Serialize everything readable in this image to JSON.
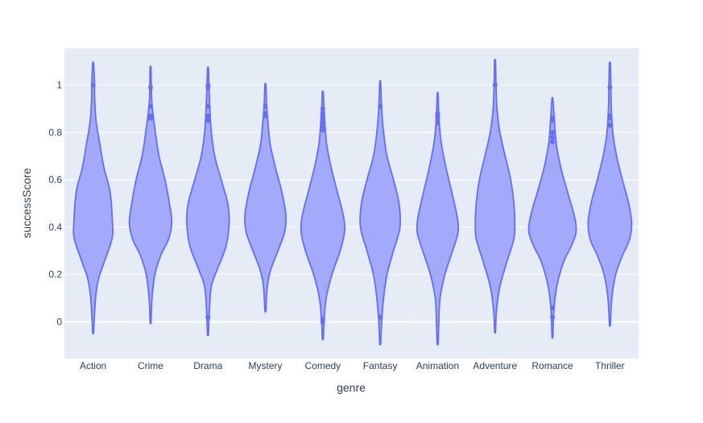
{
  "chart_data": {
    "type": "violin",
    "title": "",
    "xlabel": "genre",
    "ylabel": "successScore",
    "ylim": [
      -0.155,
      1.155
    ],
    "yticks": [
      0,
      0.2,
      0.4,
      0.6,
      0.8,
      1
    ],
    "ytick_labels": [
      "0",
      "0.2",
      "0.4",
      "0.6",
      "0.8",
      "1"
    ],
    "grid": true,
    "colors": {
      "plot_bg": "#e5ecf6",
      "grid": "#ffffff",
      "fill": "#a3a9fb",
      "line": "#636efa",
      "text": "#2a3f5f"
    },
    "categories": [
      "Action",
      "Crime",
      "Drama",
      "Mystery",
      "Comedy",
      "Fantasy",
      "Animation",
      "Adventure",
      "Romance",
      "Thriller"
    ],
    "violins": [
      {
        "category": "Action",
        "range": [
          -0.04,
          1.09
        ],
        "profile": [
          [
            -0.04,
            0.02
          ],
          [
            0.1,
            0.1
          ],
          [
            0.18,
            0.22
          ],
          [
            0.25,
            0.45
          ],
          [
            0.35,
            0.78
          ],
          [
            0.42,
            0.8
          ],
          [
            0.55,
            0.7
          ],
          [
            0.65,
            0.45
          ],
          [
            0.75,
            0.28
          ],
          [
            0.85,
            0.12
          ],
          [
            0.95,
            0.06
          ],
          [
            1.0,
            0.06
          ],
          [
            1.09,
            0.02
          ]
        ],
        "outliers": [
          1.0
        ]
      },
      {
        "category": "Crime",
        "range": [
          0.0,
          1.07
        ],
        "profile": [
          [
            0.0,
            0.02
          ],
          [
            0.1,
            0.06
          ],
          [
            0.2,
            0.18
          ],
          [
            0.28,
            0.42
          ],
          [
            0.35,
            0.75
          ],
          [
            0.42,
            0.88
          ],
          [
            0.5,
            0.78
          ],
          [
            0.6,
            0.6
          ],
          [
            0.7,
            0.35
          ],
          [
            0.8,
            0.2
          ],
          [
            0.88,
            0.1
          ],
          [
            0.95,
            0.04
          ],
          [
            1.07,
            0.02
          ]
        ],
        "outliers": [
          0.86,
          0.87,
          0.91,
          0.99
        ]
      },
      {
        "category": "Drama",
        "range": [
          -0.05,
          1.07
        ],
        "profile": [
          [
            -0.05,
            0.02
          ],
          [
            0.05,
            0.06
          ],
          [
            0.15,
            0.14
          ],
          [
            0.22,
            0.38
          ],
          [
            0.32,
            0.75
          ],
          [
            0.42,
            0.88
          ],
          [
            0.5,
            0.82
          ],
          [
            0.6,
            0.55
          ],
          [
            0.7,
            0.28
          ],
          [
            0.8,
            0.14
          ],
          [
            0.9,
            0.08
          ],
          [
            1.0,
            0.04
          ],
          [
            1.07,
            0.02
          ]
        ],
        "outliers": [
          0.02,
          0.85,
          0.86,
          0.87,
          0.91,
          0.99,
          1.0
        ]
      },
      {
        "category": "Mystery",
        "range": [
          0.05,
          1.0
        ],
        "profile": [
          [
            0.05,
            0.02
          ],
          [
            0.15,
            0.08
          ],
          [
            0.22,
            0.22
          ],
          [
            0.3,
            0.52
          ],
          [
            0.38,
            0.8
          ],
          [
            0.45,
            0.85
          ],
          [
            0.55,
            0.68
          ],
          [
            0.65,
            0.42
          ],
          [
            0.75,
            0.2
          ],
          [
            0.85,
            0.1
          ],
          [
            0.92,
            0.05
          ],
          [
            1.0,
            0.02
          ]
        ],
        "outliers": [
          0.87,
          0.88,
          0.91
        ]
      },
      {
        "category": "Comedy",
        "range": [
          -0.07,
          0.97
        ],
        "profile": [
          [
            -0.07,
            0.02
          ],
          [
            0.0,
            0.05
          ],
          [
            0.1,
            0.14
          ],
          [
            0.2,
            0.38
          ],
          [
            0.3,
            0.72
          ],
          [
            0.38,
            0.9
          ],
          [
            0.45,
            0.85
          ],
          [
            0.55,
            0.6
          ],
          [
            0.65,
            0.35
          ],
          [
            0.75,
            0.16
          ],
          [
            0.85,
            0.08
          ],
          [
            0.92,
            0.04
          ],
          [
            0.97,
            0.02
          ]
        ],
        "outliers": [
          0.0,
          0.01,
          0.81,
          0.82,
          0.84,
          0.85,
          0.86,
          0.88,
          0.9
        ]
      },
      {
        "category": "Fantasy",
        "range": [
          -0.09,
          1.01
        ],
        "profile": [
          [
            -0.09,
            0.02
          ],
          [
            0.0,
            0.06
          ],
          [
            0.1,
            0.14
          ],
          [
            0.2,
            0.28
          ],
          [
            0.3,
            0.55
          ],
          [
            0.4,
            0.82
          ],
          [
            0.5,
            0.78
          ],
          [
            0.6,
            0.55
          ],
          [
            0.7,
            0.28
          ],
          [
            0.8,
            0.14
          ],
          [
            0.9,
            0.06
          ],
          [
            1.01,
            0.02
          ]
        ],
        "outliers": [
          0.02,
          0.91
        ]
      },
      {
        "category": "Animation",
        "range": [
          -0.09,
          0.96
        ],
        "profile": [
          [
            -0.09,
            0.02
          ],
          [
            0.0,
            0.05
          ],
          [
            0.1,
            0.1
          ],
          [
            0.2,
            0.3
          ],
          [
            0.3,
            0.62
          ],
          [
            0.38,
            0.85
          ],
          [
            0.45,
            0.8
          ],
          [
            0.55,
            0.58
          ],
          [
            0.65,
            0.35
          ],
          [
            0.75,
            0.16
          ],
          [
            0.85,
            0.06
          ],
          [
            0.96,
            0.02
          ]
        ],
        "outliers": [
          0.84,
          0.86,
          0.87,
          0.88
        ]
      },
      {
        "category": "Adventure",
        "range": [
          -0.04,
          1.1
        ],
        "profile": [
          [
            -0.04,
            0.02
          ],
          [
            0.05,
            0.06
          ],
          [
            0.15,
            0.2
          ],
          [
            0.25,
            0.48
          ],
          [
            0.35,
            0.78
          ],
          [
            0.42,
            0.82
          ],
          [
            0.5,
            0.78
          ],
          [
            0.6,
            0.65
          ],
          [
            0.7,
            0.42
          ],
          [
            0.8,
            0.2
          ],
          [
            0.9,
            0.08
          ],
          [
            1.0,
            0.04
          ],
          [
            1.1,
            0.02
          ]
        ],
        "outliers": [
          1.0
        ]
      },
      {
        "category": "Romance",
        "range": [
          -0.06,
          0.94
        ],
        "profile": [
          [
            -0.06,
            0.02
          ],
          [
            0.05,
            0.06
          ],
          [
            0.15,
            0.18
          ],
          [
            0.25,
            0.45
          ],
          [
            0.32,
            0.78
          ],
          [
            0.38,
            0.98
          ],
          [
            0.45,
            0.9
          ],
          [
            0.55,
            0.62
          ],
          [
            0.65,
            0.35
          ],
          [
            0.75,
            0.16
          ],
          [
            0.85,
            0.08
          ],
          [
            0.94,
            0.02
          ]
        ],
        "outliers": [
          0.02,
          0.06,
          0.76,
          0.78,
          0.8,
          0.85,
          0.86
        ]
      },
      {
        "category": "Thriller",
        "range": [
          -0.01,
          1.09
        ],
        "profile": [
          [
            -0.01,
            0.02
          ],
          [
            0.1,
            0.08
          ],
          [
            0.2,
            0.24
          ],
          [
            0.28,
            0.52
          ],
          [
            0.35,
            0.82
          ],
          [
            0.42,
            0.9
          ],
          [
            0.5,
            0.78
          ],
          [
            0.6,
            0.52
          ],
          [
            0.7,
            0.28
          ],
          [
            0.8,
            0.12
          ],
          [
            0.9,
            0.06
          ],
          [
            1.0,
            0.04
          ],
          [
            1.09,
            0.02
          ]
        ],
        "outliers": [
          0.83,
          0.86,
          0.87,
          0.99
        ]
      }
    ]
  }
}
